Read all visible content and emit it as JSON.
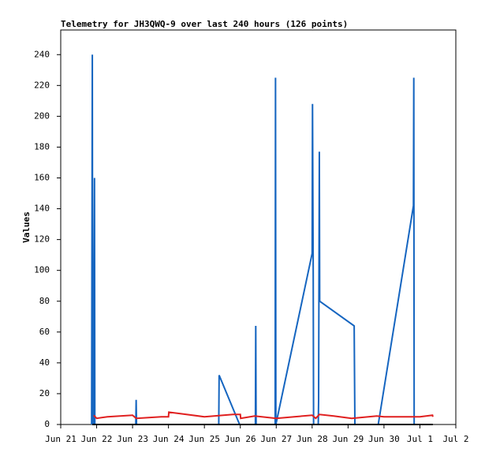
{
  "chart_data": {
    "type": "line",
    "title": "Telemetry for JH3QWQ-9 over last 240 hours (126 points)",
    "y_label": "Values",
    "xlim": [
      0,
      11
    ],
    "ylim": [
      0,
      256
    ],
    "xticks": [
      {
        "value": 0,
        "label": "Jun 21"
      },
      {
        "value": 1,
        "label": "Jun 22"
      },
      {
        "value": 2,
        "label": "Jun 23"
      },
      {
        "value": 3,
        "label": "Jun 24"
      },
      {
        "value": 4,
        "label": "Jun 25"
      },
      {
        "value": 5,
        "label": "Jun 26"
      },
      {
        "value": 6,
        "label": "Jun 27"
      },
      {
        "value": 7,
        "label": "Jun 28"
      },
      {
        "value": 8,
        "label": "Jun 29"
      },
      {
        "value": 9,
        "label": "Jun 30"
      },
      {
        "value": 10,
        "label": "Jul 1"
      },
      {
        "value": 11,
        "label": "Jul 2"
      }
    ],
    "yticks": [
      0,
      20,
      40,
      60,
      80,
      100,
      120,
      140,
      160,
      180,
      200,
      220,
      240
    ],
    "series": [
      {
        "color": "#1565c0",
        "x": [
          0.86,
          0.88,
          0.89,
          0.9,
          0.91,
          0.94,
          0.95,
          2.09,
          2.1,
          2.11,
          4.4,
          4.41,
          4.98,
          5.42,
          5.43,
          5.44,
          5.97,
          5.98,
          5.99,
          7.0,
          7.01,
          7.03,
          7.04,
          7.17,
          7.18,
          7.2,
          7.21,
          8.17,
          8.18,
          8.19,
          8.84,
          9.82,
          9.83,
          9.84,
          10.2
        ],
        "values": [
          0,
          240,
          0,
          80,
          0,
          160,
          0,
          0,
          16,
          0,
          0,
          32,
          0,
          0,
          64,
          0,
          0,
          225,
          0,
          111,
          208,
          97,
          0,
          0,
          16,
          177,
          80,
          64,
          32,
          0,
          0,
          142,
          225,
          0,
          0
        ]
      },
      {
        "color": "#e02020",
        "x": [
          0.92,
          1.0,
          1.3,
          2.0,
          2.1,
          2.8,
          3.0,
          3.01,
          3.5,
          4.0,
          4.8,
          5.0,
          5.01,
          5.4,
          6.0,
          6.5,
          7.0,
          7.1,
          7.2,
          7.6,
          8.1,
          8.8,
          9.0,
          10.0,
          10.35,
          10.36
        ],
        "values": [
          6,
          4,
          5,
          6,
          4,
          5,
          5,
          8,
          6.5,
          5,
          6.5,
          6.5,
          4,
          5.5,
          4,
          5,
          6,
          4,
          6.5,
          5.5,
          4,
          5.5,
          5,
          5,
          6,
          5
        ]
      },
      {
        "color": "#000000",
        "x": [
          0.88,
          10.36
        ],
        "values": [
          0,
          0
        ]
      }
    ]
  }
}
